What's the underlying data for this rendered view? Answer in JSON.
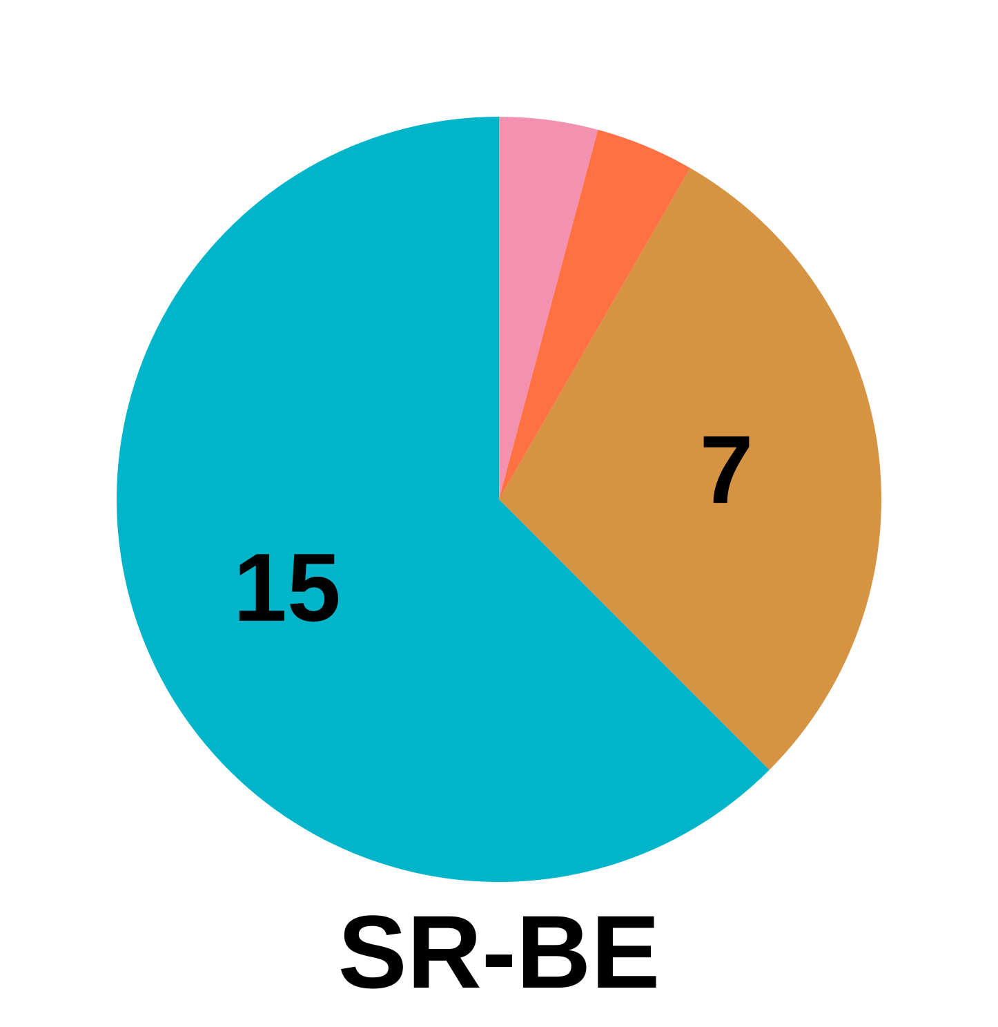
{
  "chart_data": {
    "type": "pie",
    "title": "SR-BE",
    "start_angle": "12 o'clock",
    "direction": "clockwise",
    "slices": [
      {
        "value": 1,
        "label": "",
        "color": "#F291B0"
      },
      {
        "value": 1,
        "label": "",
        "color": "#FF7043"
      },
      {
        "value": 7,
        "label": "7",
        "color": "#D69442"
      },
      {
        "value": 15,
        "label": "15",
        "color": "#00B5CA"
      }
    ]
  }
}
